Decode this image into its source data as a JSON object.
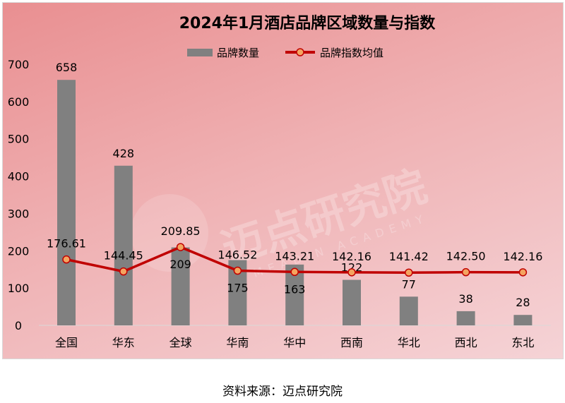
{
  "chart_data": {
    "type": "bar+line",
    "title": "2024年1月酒店品牌区域数量与指数",
    "categories": [
      "全国",
      "华东",
      "全球",
      "华南",
      "华中",
      "西南",
      "华北",
      "西北",
      "东北"
    ],
    "series": [
      {
        "name": "品牌数量",
        "type": "bar",
        "color": "#808080",
        "values": [
          658,
          428,
          209,
          175,
          163,
          122,
          77,
          38,
          28
        ]
      },
      {
        "name": "品牌指数均值",
        "type": "line",
        "color": "#c00000",
        "marker_color": "#f4a460",
        "values": [
          176.61,
          144.45,
          209.85,
          146.52,
          143.21,
          142.16,
          141.42,
          142.5,
          142.16
        ]
      }
    ],
    "value_labels": {
      "bar": [
        "658",
        "428",
        "209",
        "175",
        "163",
        "122",
        "77",
        "38",
        "28"
      ],
      "line": [
        "176.61",
        "144.45",
        "209.85",
        "146.52",
        "143.21",
        "142.16",
        "141.42",
        "142.50",
        "142.16"
      ]
    },
    "ylim": [
      0,
      700
    ],
    "yticks": [
      0,
      100,
      200,
      300,
      400,
      500,
      600,
      700
    ],
    "legend": "top-center",
    "grid": false,
    "watermark": {
      "cn": "迈点研究院",
      "en": "MEADIN ACADEMY"
    }
  },
  "source": "资料来源：迈点研究院"
}
